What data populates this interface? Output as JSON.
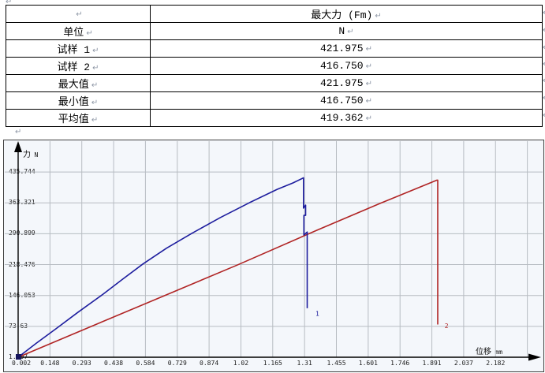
{
  "marks": {
    "pilcrow": "↵"
  },
  "table": {
    "rows": [
      {
        "label": "",
        "value": "最大力 (Fm)"
      },
      {
        "label": "单位",
        "value": "N"
      },
      {
        "label": "试样 1",
        "value": "421.975"
      },
      {
        "label": "试样 2",
        "value": "416.750"
      },
      {
        "label": "最大值",
        "value": "421.975"
      },
      {
        "label": "最小值",
        "value": "416.750"
      },
      {
        "label": "平均值",
        "value": "419.362"
      }
    ]
  },
  "chart_data": {
    "type": "line",
    "title": "",
    "xlabel": "位移 mm",
    "ylabel": "力 N",
    "xlabel_parts": [
      "位移",
      "mm"
    ],
    "ylabel_parts": [
      "力",
      "N"
    ],
    "x_ticks": [
      "0.002",
      "0.148",
      "0.293",
      "0.438",
      "0.584",
      "0.729",
      "0.874",
      "1.02",
      "1.165",
      "1.31",
      "1.455",
      "1.601",
      "1.746",
      "1.891",
      "2.037",
      "2.182"
    ],
    "y_ticks": [
      "1.207",
      "73.63",
      "146.053",
      "218.476",
      "290.899",
      "363.321",
      "435.744"
    ],
    "x_range": [
      0.002,
      2.182
    ],
    "y_range": [
      1.207,
      508.167
    ],
    "grid": true,
    "legend_position": "none",
    "colors": {
      "grid": "#b7bcc2",
      "axis": "#000000",
      "background": "#f4f7fb"
    },
    "origin_marker": true,
    "series": [
      {
        "name": "试样 1",
        "color": "#1d1d9e",
        "end_label": {
          "text": "1",
          "x": 1.36,
          "y": 98
        },
        "points": [
          [
            0.002,
            1.2
          ],
          [
            0.085,
            34
          ],
          [
            0.175,
            68
          ],
          [
            0.276,
            107
          ],
          [
            0.384,
            147
          ],
          [
            0.478,
            184
          ],
          [
            0.572,
            220
          ],
          [
            0.68,
            257
          ],
          [
            0.796,
            292
          ],
          [
            0.926,
            329
          ],
          [
            1.059,
            364
          ],
          [
            1.185,
            395
          ],
          [
            1.257,
            410
          ],
          [
            1.305,
            421.975
          ],
          [
            1.305,
            351
          ],
          [
            1.315,
            358
          ],
          [
            1.315,
            334
          ],
          [
            1.307,
            334
          ],
          [
            1.307,
            288
          ],
          [
            1.322,
            295
          ],
          [
            1.322,
            116
          ]
        ]
      },
      {
        "name": "试样 2",
        "color": "#b02424",
        "end_label": {
          "text": "2",
          "x": 1.95,
          "y": 70
        },
        "points": [
          [
            0.002,
            1.2
          ],
          [
            0.283,
            62
          ],
          [
            0.644,
            140
          ],
          [
            1.005,
            218
          ],
          [
            1.366,
            299
          ],
          [
            1.654,
            362
          ],
          [
            1.915,
            416.75
          ],
          [
            1.918,
            416.75
          ],
          [
            1.918,
            78
          ]
        ]
      }
    ]
  }
}
